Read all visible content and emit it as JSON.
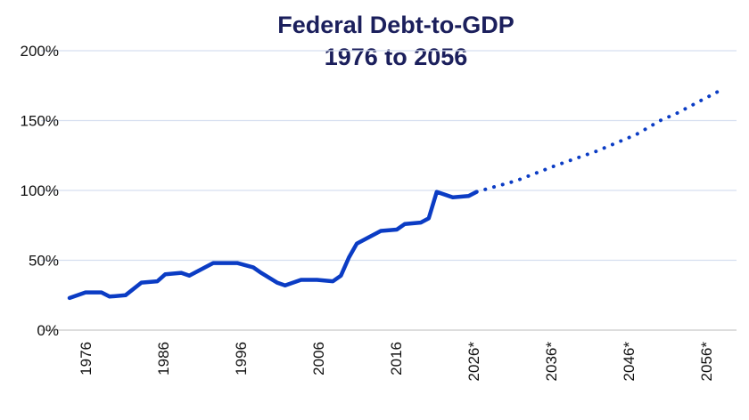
{
  "chart_data": {
    "type": "line",
    "title": "Federal Debt-to-GDP",
    "subtitle": "1976 to 2056",
    "xlabel": "",
    "ylabel": "",
    "ylim": [
      0,
      200
    ],
    "xlim": [
      1974,
      2056
    ],
    "yticks": [
      "0%",
      "50%",
      "100%",
      "150%",
      "200%"
    ],
    "ytick_values": [
      0,
      50,
      100,
      150,
      200
    ],
    "xticks": [
      "1976",
      "1986",
      "1996",
      "2006",
      "2016",
      "2026*",
      "2036*",
      "2046*",
      "2056*"
    ],
    "xtick_values": [
      1976,
      1986,
      1996,
      2006,
      2016,
      2026,
      2036,
      2046,
      2056
    ],
    "grid": "horizontal",
    "legend": "none",
    "colors": {
      "line": "#0b3cc4",
      "title": "#1b1f5c",
      "grid": "#d6dff0",
      "baseline": "#dddddd"
    },
    "series": [
      {
        "style": "solid",
        "x": [
          1974,
          1976,
          1978,
          1979,
          1981,
          1983,
          1985,
          1986,
          1988,
          1989,
          1992,
          1995,
          1997,
          1998,
          2000,
          2001,
          2003,
          2005,
          2007,
          2008,
          2009,
          2010,
          2013,
          2015,
          2016,
          2018,
          2019,
          2020,
          2022,
          2024,
          2025
        ],
        "y": [
          23,
          27,
          27,
          24,
          25,
          34,
          35,
          40,
          41,
          39,
          48,
          48,
          45,
          41,
          34,
          32,
          36,
          36,
          35,
          39,
          52,
          62,
          71,
          72,
          76,
          77,
          80,
          99,
          95,
          96,
          99
        ]
      },
      {
        "style": "dotted",
        "x": [
          2025,
          2030,
          2035,
          2040,
          2045,
          2048,
          2050,
          2053,
          2056
        ],
        "y": [
          99,
          107,
          118,
          128,
          140,
          150,
          155,
          164,
          173
        ]
      }
    ]
  }
}
